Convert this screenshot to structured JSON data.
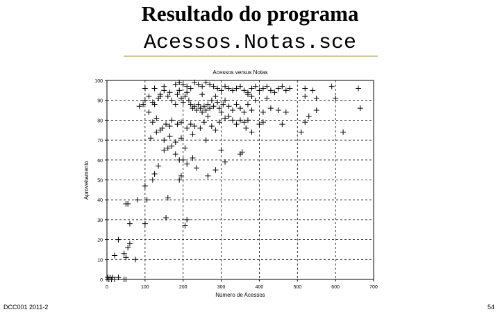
{
  "slide": {
    "title_line1": "Resultado do programa",
    "title_line2": "Acessos.Notas.sce",
    "footer_left": "DCC001 2011-2",
    "page_number": "54"
  },
  "chart_data": {
    "type": "scatter",
    "title": "Acessos versus Notas",
    "xlabel": "Número de Acessos",
    "ylabel": "Aproveitamento",
    "xlim": [
      0,
      700
    ],
    "ylim": [
      0,
      100
    ],
    "xticks": [
      0,
      100,
      200,
      300,
      400,
      500,
      600,
      700
    ],
    "yticks": [
      0,
      10,
      20,
      30,
      40,
      50,
      60,
      70,
      80,
      90,
      100
    ],
    "grid": true,
    "marker": "+",
    "points": [
      [
        2,
        1
      ],
      [
        5,
        0
      ],
      [
        8,
        1
      ],
      [
        12,
        0
      ],
      [
        15,
        1
      ],
      [
        20,
        0
      ],
      [
        30,
        1
      ],
      [
        45,
        0
      ],
      [
        50,
        0
      ],
      [
        20,
        12
      ],
      [
        30,
        20
      ],
      [
        45,
        13
      ],
      [
        50,
        11
      ],
      [
        55,
        16
      ],
      [
        60,
        18
      ],
      [
        75,
        10
      ],
      [
        60,
        28
      ],
      [
        100,
        28
      ],
      [
        50,
        38
      ],
      [
        55,
        38
      ],
      [
        80,
        40
      ],
      [
        105,
        40
      ],
      [
        155,
        31
      ],
      [
        160,
        41
      ],
      [
        190,
        50
      ],
      [
        195,
        52
      ],
      [
        205,
        27
      ],
      [
        210,
        30
      ],
      [
        120,
        50
      ],
      [
        125,
        53
      ],
      [
        135,
        57
      ],
      [
        235,
        56
      ],
      [
        265,
        52
      ],
      [
        285,
        55
      ],
      [
        100,
        47
      ],
      [
        150,
        65
      ],
      [
        160,
        66
      ],
      [
        170,
        67
      ],
      [
        180,
        63
      ],
      [
        190,
        60
      ],
      [
        200,
        60
      ],
      [
        210,
        58
      ],
      [
        225,
        61
      ],
      [
        115,
        71
      ],
      [
        130,
        74
      ],
      [
        140,
        75
      ],
      [
        150,
        70
      ],
      [
        165,
        72
      ],
      [
        180,
        69
      ],
      [
        195,
        71
      ],
      [
        205,
        66
      ],
      [
        225,
        73
      ],
      [
        260,
        70
      ],
      [
        300,
        65
      ],
      [
        310,
        59
      ],
      [
        350,
        63
      ],
      [
        355,
        64
      ],
      [
        120,
        79
      ],
      [
        130,
        81
      ],
      [
        145,
        76
      ],
      [
        155,
        78
      ],
      [
        165,
        77
      ],
      [
        170,
        80
      ],
      [
        185,
        78
      ],
      [
        195,
        79
      ],
      [
        210,
        76
      ],
      [
        220,
        78
      ],
      [
        230,
        77
      ],
      [
        245,
        76
      ],
      [
        255,
        79
      ],
      [
        265,
        82
      ],
      [
        275,
        77
      ],
      [
        285,
        75
      ],
      [
        295,
        79
      ],
      [
        310,
        81
      ],
      [
        320,
        82
      ],
      [
        330,
        80
      ],
      [
        340,
        78
      ],
      [
        350,
        80
      ],
      [
        360,
        79
      ],
      [
        365,
        76
      ],
      [
        370,
        80
      ],
      [
        380,
        74
      ],
      [
        400,
        78
      ],
      [
        410,
        79
      ],
      [
        460,
        78
      ],
      [
        510,
        74
      ],
      [
        520,
        79
      ],
      [
        530,
        82
      ],
      [
        620,
        74
      ],
      [
        85,
        87
      ],
      [
        95,
        88
      ],
      [
        100,
        90
      ],
      [
        110,
        92
      ],
      [
        120,
        89
      ],
      [
        125,
        88
      ],
      [
        135,
        91
      ],
      [
        140,
        93
      ],
      [
        150,
        95
      ],
      [
        160,
        92
      ],
      [
        165,
        94
      ],
      [
        170,
        90
      ],
      [
        180,
        88
      ],
      [
        185,
        93
      ],
      [
        190,
        95
      ],
      [
        195,
        91
      ],
      [
        200,
        89
      ],
      [
        205,
        92
      ],
      [
        210,
        94
      ],
      [
        215,
        90
      ],
      [
        220,
        88
      ],
      [
        225,
        86
      ],
      [
        230,
        87
      ],
      [
        235,
        85
      ],
      [
        240,
        88
      ],
      [
        245,
        86
      ],
      [
        250,
        84
      ],
      [
        255,
        87
      ],
      [
        260,
        85
      ],
      [
        265,
        88
      ],
      [
        270,
        86
      ],
      [
        275,
        90
      ],
      [
        280,
        87
      ],
      [
        285,
        92
      ],
      [
        290,
        89
      ],
      [
        295,
        86
      ],
      [
        300,
        84
      ],
      [
        305,
        88
      ],
      [
        310,
        90
      ],
      [
        320,
        87
      ],
      [
        330,
        85
      ],
      [
        340,
        88
      ],
      [
        350,
        86
      ],
      [
        360,
        84
      ],
      [
        370,
        88
      ],
      [
        380,
        85
      ],
      [
        410,
        84
      ],
      [
        430,
        86
      ],
      [
        450,
        85
      ],
      [
        470,
        84
      ],
      [
        550,
        85
      ],
      [
        665,
        86
      ],
      [
        100,
        96
      ],
      [
        125,
        96
      ],
      [
        150,
        97
      ],
      [
        180,
        98
      ],
      [
        190,
        99
      ],
      [
        200,
        98
      ],
      [
        210,
        97
      ],
      [
        220,
        96
      ],
      [
        230,
        99
      ],
      [
        240,
        98
      ],
      [
        250,
        97
      ],
      [
        260,
        99
      ],
      [
        270,
        98
      ],
      [
        280,
        97
      ],
      [
        290,
        96
      ],
      [
        300,
        95
      ],
      [
        310,
        97
      ],
      [
        320,
        96
      ],
      [
        330,
        95
      ],
      [
        340,
        96
      ],
      [
        350,
        97
      ],
      [
        360,
        95
      ],
      [
        370,
        94
      ],
      [
        380,
        96
      ],
      [
        390,
        97
      ],
      [
        400,
        95
      ],
      [
        410,
        96
      ],
      [
        420,
        97
      ],
      [
        430,
        95
      ],
      [
        440,
        94
      ],
      [
        450,
        96
      ],
      [
        460,
        97
      ],
      [
        470,
        95
      ],
      [
        480,
        96
      ],
      [
        520,
        96
      ],
      [
        540,
        95
      ],
      [
        590,
        97
      ],
      [
        660,
        96
      ],
      [
        140,
        92
      ],
      [
        250,
        93
      ],
      [
        370,
        93
      ],
      [
        380,
        92
      ],
      [
        390,
        90
      ],
      [
        420,
        91
      ],
      [
        520,
        92
      ],
      [
        550,
        91
      ],
      [
        600,
        91
      ],
      [
        110,
        84
      ]
    ]
  }
}
